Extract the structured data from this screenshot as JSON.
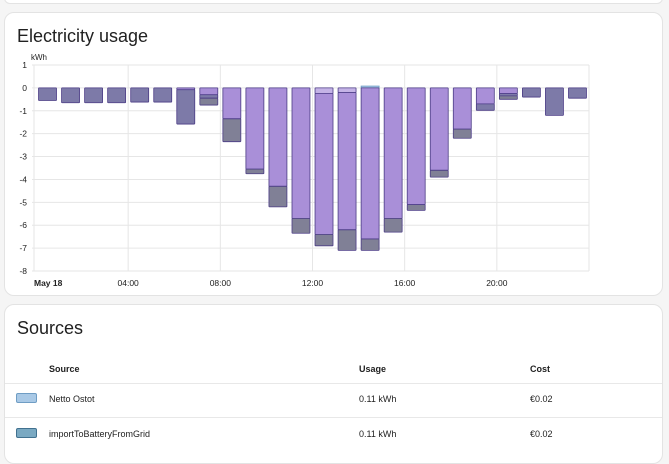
{
  "usage_card": {
    "title": "Electricity usage"
  },
  "chart_data": {
    "type": "bar",
    "ylabel": "kWh",
    "ylim": [
      -8,
      1
    ],
    "y_ticks": [
      "1",
      "0",
      "-1",
      "-2",
      "-3",
      "-4",
      "-5",
      "-6",
      "-7",
      "-8"
    ],
    "x_ticks": [
      "May 18",
      "04:00",
      "08:00",
      "12:00",
      "16:00",
      "20:00"
    ],
    "grid": true,
    "categories": [
      "00:00",
      "01:00",
      "02:00",
      "03:00",
      "04:00",
      "05:00",
      "06:00",
      "07:00",
      "08:00",
      "09:00",
      "10:00",
      "11:00",
      "12:00",
      "13:00",
      "14:00",
      "15:00",
      "16:00",
      "17:00",
      "18:00",
      "19:00",
      "20:00",
      "21:00",
      "22:00",
      "23:00"
    ],
    "colors": {
      "solar_light": "#c4b3e6",
      "solar": "#a98fd8",
      "grid": "#7d7aa8",
      "battery": "#808096",
      "blue": "#a9c9e6",
      "outline": "#4b3c85"
    },
    "series": [
      {
        "key": "blue",
        "values": [
          0,
          0,
          0,
          0,
          0,
          0,
          0,
          0,
          0,
          0,
          0,
          0,
          0,
          0,
          0.08,
          0,
          0,
          0,
          0,
          0,
          0,
          0,
          0,
          0
        ]
      },
      {
        "key": "solar_light",
        "values": [
          0,
          0,
          0,
          0,
          0,
          0,
          0,
          0,
          0,
          0,
          0,
          0,
          -0.24,
          -0.2,
          0,
          0,
          0,
          0,
          0,
          0,
          0,
          0,
          0,
          0
        ]
      },
      {
        "key": "solar",
        "values": [
          0,
          0,
          0,
          0,
          0,
          0,
          -0.08,
          -0.3,
          -1.35,
          -3.55,
          -4.3,
          -5.7,
          -6.16,
          -6.0,
          -6.6,
          -5.7,
          -5.1,
          -3.6,
          -1.8,
          -0.7,
          -0.25,
          0,
          0,
          0
        ]
      },
      {
        "key": "grid",
        "values": [
          -0.55,
          -0.65,
          -0.65,
          -0.65,
          -0.62,
          -0.62,
          -1.5,
          -0.15,
          0,
          0,
          0,
          0,
          0,
          0,
          0,
          0,
          0,
          0,
          0,
          -0.28,
          -0.1,
          -0.4,
          -1.2,
          -0.45
        ]
      },
      {
        "key": "battery",
        "values": [
          0,
          0,
          0,
          0,
          0,
          0,
          0,
          -0.3,
          -1.0,
          -0.2,
          -0.9,
          -0.65,
          -0.5,
          -0.9,
          -0.5,
          -0.6,
          -0.25,
          -0.3,
          -0.4,
          0,
          -0.15,
          0,
          0,
          0
        ]
      }
    ]
  },
  "sources_card": {
    "title": "Sources",
    "headers": {
      "source": "Source",
      "usage": "Usage",
      "cost": "Cost"
    },
    "rows": [
      {
        "name": "Netto Ostot",
        "usage": "0.11 kWh",
        "cost": "€0.02",
        "color": "#a9c9e6"
      },
      {
        "name": "importToBatteryFromGrid",
        "usage": "0.11 kWh",
        "cost": "€0.02",
        "color": "#7aa9c2"
      }
    ]
  }
}
